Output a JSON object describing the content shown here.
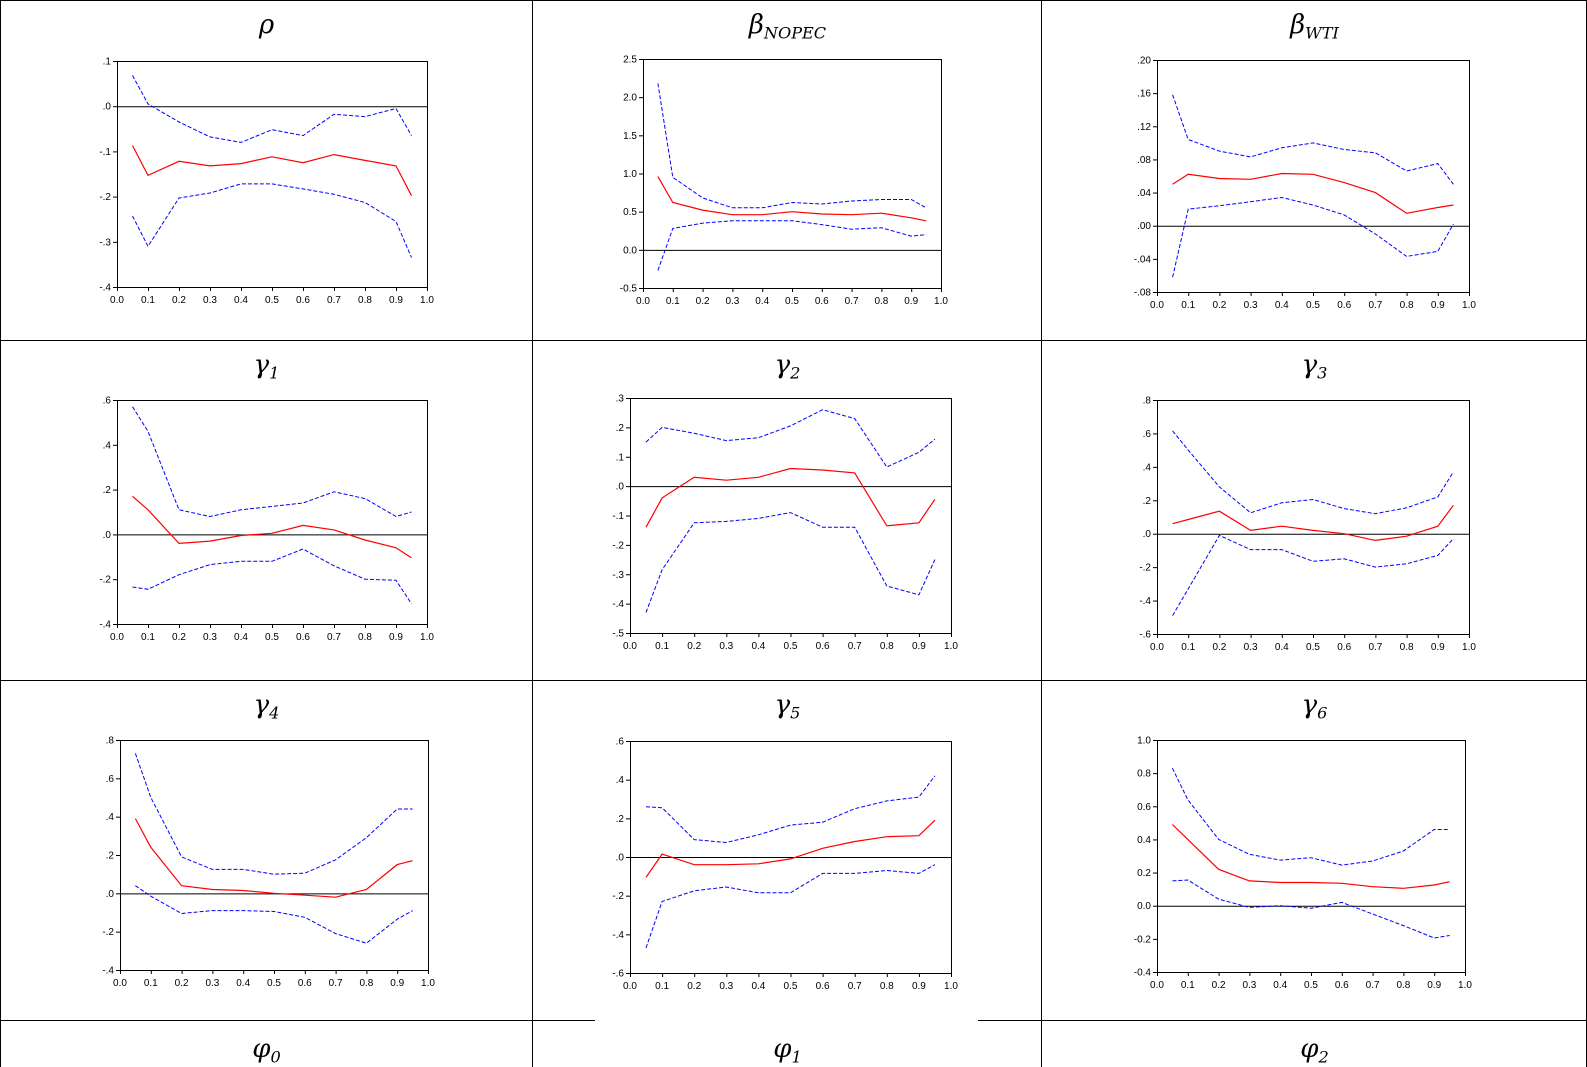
{
  "table": {
    "rows": [
      {
        "cells": [
          {
            "symbol": "ρ",
            "sub": ""
          },
          {
            "symbol": "β",
            "sub": "NOPEC"
          },
          {
            "symbol": "β",
            "sub": "WTI"
          }
        ]
      },
      {
        "cells": [
          {
            "symbol": "γ",
            "sub": "1"
          },
          {
            "symbol": "γ",
            "sub": "2"
          },
          {
            "symbol": "γ",
            "sub": "3"
          }
        ]
      },
      {
        "cells": [
          {
            "symbol": "γ",
            "sub": "4"
          },
          {
            "symbol": "γ",
            "sub": "5"
          },
          {
            "symbol": "γ",
            "sub": "6"
          }
        ]
      },
      {
        "cells": [
          {
            "symbol": "φ",
            "sub": "0"
          },
          {
            "symbol": "φ",
            "sub": "1"
          },
          {
            "symbol": "φ",
            "sub": "2"
          }
        ]
      }
    ]
  },
  "colors": {
    "estimate": "#ff0000",
    "confidence_band": "#0000ff",
    "zero_line": "#000000",
    "frame": "#000000"
  },
  "chart_data": [
    {
      "type": "line",
      "title": "ρ",
      "x": [
        0.05,
        0.1,
        0.2,
        0.3,
        0.4,
        0.5,
        0.6,
        0.7,
        0.8,
        0.9,
        0.95
      ],
      "xlim": [
        0.0,
        1.0
      ],
      "xticks": [
        "0.0",
        "0.1",
        "0.2",
        "0.3",
        "0.4",
        "0.5",
        "0.6",
        "0.7",
        "0.8",
        "0.9",
        "1.0"
      ],
      "ylim": [
        -0.4,
        0.1
      ],
      "yticks": [
        {
          "value": 0.1,
          "label": ".1"
        },
        {
          "value": 0.0,
          "label": ".0"
        },
        {
          "value": -0.1,
          "label": "-.1"
        },
        {
          "value": -0.2,
          "label": "-.2"
        },
        {
          "value": -0.3,
          "label": "-.3"
        },
        {
          "value": -0.4,
          "label": "-.4"
        }
      ],
      "series": [
        {
          "role": "upper",
          "style": "dashed",
          "values": [
            0.068,
            0.005,
            -0.035,
            -0.068,
            -0.08,
            -0.052,
            -0.065,
            -0.018,
            -0.023,
            -0.005,
            -0.065
          ]
        },
        {
          "role": "estimate",
          "style": "solid",
          "values": [
            -0.087,
            -0.153,
            -0.122,
            -0.132,
            -0.127,
            -0.112,
            -0.125,
            -0.107,
            -0.12,
            -0.132,
            -0.198
          ]
        },
        {
          "role": "lower",
          "style": "dashed",
          "values": [
            -0.243,
            -0.31,
            -0.203,
            -0.192,
            -0.172,
            -0.172,
            -0.183,
            -0.195,
            -0.213,
            -0.255,
            -0.335
          ]
        }
      ]
    },
    {
      "type": "line",
      "title": "β_NOPEC",
      "x": [
        0.05,
        0.1,
        0.2,
        0.3,
        0.4,
        0.5,
        0.6,
        0.7,
        0.8,
        0.9,
        0.95
      ],
      "xlim": [
        0.0,
        1.0
      ],
      "xticks": [
        "0.0",
        "0.1",
        "0.2",
        "0.3",
        "0.4",
        "0.5",
        "0.6",
        "0.7",
        "0.8",
        "0.9",
        "1.0"
      ],
      "ylim": [
        -0.5,
        2.5
      ],
      "yticks": [
        {
          "value": 2.5,
          "label": "2.5"
        },
        {
          "value": 2.0,
          "label": "2.0"
        },
        {
          "value": 1.5,
          "label": "1.5"
        },
        {
          "value": 1.0,
          "label": "1.0"
        },
        {
          "value": 0.5,
          "label": "0.5"
        },
        {
          "value": 0.0,
          "label": "0.0"
        },
        {
          "value": -0.5,
          "label": "-0.5"
        }
      ],
      "series": [
        {
          "role": "upper",
          "style": "dashed",
          "values": [
            2.18,
            0.95,
            0.68,
            0.55,
            0.55,
            0.62,
            0.6,
            0.64,
            0.66,
            0.66,
            0.55
          ]
        },
        {
          "role": "estimate",
          "style": "solid",
          "values": [
            0.96,
            0.62,
            0.52,
            0.46,
            0.46,
            0.5,
            0.47,
            0.46,
            0.48,
            0.42,
            0.38
          ]
        },
        {
          "role": "lower",
          "style": "dashed",
          "values": [
            -0.27,
            0.28,
            0.35,
            0.38,
            0.38,
            0.38,
            0.33,
            0.27,
            0.29,
            0.18,
            0.2
          ]
        }
      ]
    },
    {
      "type": "line",
      "title": "β_WTI",
      "x": [
        0.05,
        0.1,
        0.2,
        0.3,
        0.4,
        0.5,
        0.6,
        0.7,
        0.8,
        0.9,
        0.95
      ],
      "xlim": [
        0.0,
        1.0
      ],
      "xticks": [
        "0.0",
        "0.1",
        "0.2",
        "0.3",
        "0.4",
        "0.5",
        "0.6",
        "0.7",
        "0.8",
        "0.9",
        "1.0"
      ],
      "ylim": [
        -0.08,
        0.2
      ],
      "yticks": [
        {
          "value": 0.2,
          "label": ".20"
        },
        {
          "value": 0.16,
          "label": ".16"
        },
        {
          "value": 0.12,
          "label": ".12"
        },
        {
          "value": 0.08,
          "label": ".08"
        },
        {
          "value": 0.04,
          "label": ".04"
        },
        {
          "value": 0.0,
          "label": ".00"
        },
        {
          "value": -0.04,
          "label": "-.04"
        },
        {
          "value": -0.08,
          "label": "-.08"
        }
      ],
      "series": [
        {
          "role": "upper",
          "style": "dashed",
          "values": [
            0.158,
            0.104,
            0.09,
            0.083,
            0.094,
            0.1,
            0.092,
            0.088,
            0.066,
            0.075,
            0.05
          ]
        },
        {
          "role": "estimate",
          "style": "solid",
          "values": [
            0.05,
            0.062,
            0.057,
            0.056,
            0.063,
            0.062,
            0.052,
            0.04,
            0.015,
            0.022,
            0.025
          ]
        },
        {
          "role": "lower",
          "style": "dashed",
          "values": [
            -0.062,
            0.02,
            0.024,
            0.029,
            0.034,
            0.025,
            0.013,
            -0.01,
            -0.037,
            -0.031,
            0.002
          ]
        }
      ]
    },
    {
      "type": "line",
      "title": "γ_1",
      "x": [
        0.05,
        0.1,
        0.2,
        0.3,
        0.4,
        0.5,
        0.6,
        0.7,
        0.8,
        0.9,
        0.95
      ],
      "xlim": [
        0.0,
        1.0
      ],
      "xticks": [
        "0.0",
        "0.1",
        "0.2",
        "0.3",
        "0.4",
        "0.5",
        "0.6",
        "0.7",
        "0.8",
        "0.9",
        "1.0"
      ],
      "ylim": [
        -0.4,
        0.6
      ],
      "yticks": [
        {
          "value": 0.6,
          "label": ".6"
        },
        {
          "value": 0.4,
          "label": ".4"
        },
        {
          "value": 0.2,
          "label": ".2"
        },
        {
          "value": 0.0,
          "label": ".0"
        },
        {
          "value": -0.2,
          "label": "-.2"
        },
        {
          "value": -0.4,
          "label": "-.4"
        }
      ],
      "series": [
        {
          "role": "upper",
          "style": "dashed",
          "values": [
            0.57,
            0.46,
            0.11,
            0.08,
            0.11,
            0.125,
            0.14,
            0.19,
            0.16,
            0.08,
            0.1
          ]
        },
        {
          "role": "estimate",
          "style": "solid",
          "values": [
            0.17,
            0.11,
            -0.04,
            -0.03,
            -0.005,
            0.005,
            0.04,
            0.02,
            -0.025,
            -0.06,
            -0.105
          ]
        },
        {
          "role": "lower",
          "style": "dashed",
          "values": [
            -0.235,
            -0.245,
            -0.18,
            -0.135,
            -0.12,
            -0.12,
            -0.065,
            -0.14,
            -0.2,
            -0.205,
            -0.31
          ]
        }
      ]
    },
    {
      "type": "line",
      "title": "γ_2",
      "x": [
        0.05,
        0.1,
        0.2,
        0.3,
        0.4,
        0.5,
        0.6,
        0.7,
        0.8,
        0.9,
        0.95
      ],
      "xlim": [
        0.0,
        1.0
      ],
      "xticks": [
        "0.0",
        "0.1",
        "0.2",
        "0.3",
        "0.4",
        "0.5",
        "0.6",
        "0.7",
        "0.8",
        "0.9",
        "1.0"
      ],
      "ylim": [
        -0.5,
        0.3
      ],
      "yticks": [
        {
          "value": 0.3,
          "label": ".3"
        },
        {
          "value": 0.2,
          "label": ".2"
        },
        {
          "value": 0.1,
          "label": ".1"
        },
        {
          "value": 0.0,
          "label": ".0"
        },
        {
          "value": -0.1,
          "label": "-.1"
        },
        {
          "value": -0.2,
          "label": "-.2"
        },
        {
          "value": -0.3,
          "label": "-.3"
        },
        {
          "value": -0.4,
          "label": "-.4"
        },
        {
          "value": -0.5,
          "label": "-.5"
        }
      ],
      "series": [
        {
          "role": "upper",
          "style": "dashed",
          "values": [
            0.15,
            0.2,
            0.18,
            0.155,
            0.165,
            0.205,
            0.26,
            0.23,
            0.065,
            0.115,
            0.16
          ]
        },
        {
          "role": "estimate",
          "style": "solid",
          "values": [
            -0.14,
            -0.04,
            0.03,
            0.02,
            0.03,
            0.06,
            0.055,
            0.045,
            -0.135,
            -0.125,
            -0.045
          ]
        },
        {
          "role": "lower",
          "style": "dashed",
          "values": [
            -0.43,
            -0.285,
            -0.125,
            -0.12,
            -0.11,
            -0.09,
            -0.14,
            -0.14,
            -0.34,
            -0.37,
            -0.25
          ]
        }
      ]
    },
    {
      "type": "line",
      "title": "γ_3",
      "x": [
        0.05,
        0.1,
        0.2,
        0.3,
        0.4,
        0.5,
        0.6,
        0.7,
        0.8,
        0.9,
        0.95
      ],
      "xlim": [
        0.0,
        1.0
      ],
      "xticks": [
        "0.0",
        "0.1",
        "0.2",
        "0.3",
        "0.4",
        "0.5",
        "0.6",
        "0.7",
        "0.8",
        "0.9",
        "1.0"
      ],
      "ylim": [
        -0.6,
        0.8
      ],
      "yticks": [
        {
          "value": 0.8,
          "label": ".8"
        },
        {
          "value": 0.6,
          "label": ".6"
        },
        {
          "value": 0.4,
          "label": ".4"
        },
        {
          "value": 0.2,
          "label": ".2"
        },
        {
          "value": 0.0,
          "label": ".0"
        },
        {
          "value": -0.2,
          "label": "-.2"
        },
        {
          "value": -0.4,
          "label": "-.4"
        },
        {
          "value": -0.6,
          "label": "-.6"
        }
      ],
      "series": [
        {
          "role": "upper",
          "style": "dashed",
          "values": [
            0.615,
            0.5,
            0.28,
            0.125,
            0.185,
            0.205,
            0.15,
            0.12,
            0.155,
            0.22,
            0.37
          ]
        },
        {
          "role": "estimate",
          "style": "solid",
          "values": [
            0.06,
            0.085,
            0.135,
            0.02,
            0.045,
            0.02,
            0.0,
            -0.04,
            -0.015,
            0.045,
            0.17
          ]
        },
        {
          "role": "lower",
          "style": "dashed",
          "values": [
            -0.49,
            -0.33,
            -0.01,
            -0.095,
            -0.095,
            -0.165,
            -0.15,
            -0.2,
            -0.18,
            -0.13,
            -0.03
          ]
        }
      ]
    },
    {
      "type": "line",
      "title": "γ_4",
      "x": [
        0.05,
        0.1,
        0.2,
        0.3,
        0.4,
        0.5,
        0.6,
        0.7,
        0.8,
        0.9,
        0.95
      ],
      "xlim": [
        0.0,
        1.0
      ],
      "xticks": [
        "0.0",
        "0.1",
        "0.2",
        "0.3",
        "0.4",
        "0.5",
        "0.6",
        "0.7",
        "0.8",
        "0.9",
        "1.0"
      ],
      "ylim": [
        -0.4,
        0.8
      ],
      "yticks": [
        {
          "value": 0.8,
          "label": ".8"
        },
        {
          "value": 0.6,
          "label": ".6"
        },
        {
          "value": 0.4,
          "label": ".4"
        },
        {
          "value": 0.2,
          "label": ".2"
        },
        {
          "value": 0.0,
          "label": ".0"
        },
        {
          "value": -0.2,
          "label": "-.2"
        },
        {
          "value": -0.4,
          "label": "-.4"
        }
      ],
      "series": [
        {
          "role": "upper",
          "style": "dashed",
          "values": [
            0.73,
            0.5,
            0.19,
            0.125,
            0.125,
            0.1,
            0.105,
            0.175,
            0.29,
            0.44,
            0.44
          ]
        },
        {
          "role": "estimate",
          "style": "solid",
          "values": [
            0.39,
            0.24,
            0.04,
            0.02,
            0.015,
            0.0,
            -0.01,
            -0.02,
            0.02,
            0.15,
            0.17
          ]
        },
        {
          "role": "lower",
          "style": "dashed",
          "values": [
            0.04,
            -0.015,
            -0.105,
            -0.09,
            -0.09,
            -0.095,
            -0.125,
            -0.21,
            -0.26,
            -0.135,
            -0.09
          ]
        }
      ]
    },
    {
      "type": "line",
      "title": "γ_5",
      "x": [
        0.05,
        0.1,
        0.2,
        0.3,
        0.4,
        0.5,
        0.6,
        0.7,
        0.8,
        0.9,
        0.95
      ],
      "xlim": [
        0.0,
        1.0
      ],
      "xticks": [
        "0.0",
        "0.1",
        "0.2",
        "0.3",
        "0.4",
        "0.5",
        "0.6",
        "0.7",
        "0.8",
        "0.9",
        "1.0"
      ],
      "ylim": [
        -0.6,
        0.6
      ],
      "yticks": [
        {
          "value": 0.6,
          "label": ".6"
        },
        {
          "value": 0.4,
          "label": ".4"
        },
        {
          "value": 0.2,
          "label": ".2"
        },
        {
          "value": 0.0,
          "label": ".0"
        },
        {
          "value": -0.2,
          "label": "-.2"
        },
        {
          "value": -0.4,
          "label": "-.4"
        },
        {
          "value": -0.6,
          "label": "-.6"
        }
      ],
      "series": [
        {
          "role": "upper",
          "style": "dashed",
          "values": [
            0.26,
            0.255,
            0.09,
            0.075,
            0.115,
            0.165,
            0.18,
            0.25,
            0.29,
            0.31,
            0.42
          ]
        },
        {
          "role": "estimate",
          "style": "solid",
          "values": [
            -0.105,
            0.015,
            -0.04,
            -0.04,
            -0.035,
            -0.01,
            0.045,
            0.08,
            0.105,
            0.11,
            0.19
          ]
        },
        {
          "role": "lower",
          "style": "dashed",
          "values": [
            -0.47,
            -0.23,
            -0.175,
            -0.155,
            -0.185,
            -0.185,
            -0.085,
            -0.085,
            -0.07,
            -0.085,
            -0.04
          ]
        }
      ]
    },
    {
      "type": "line",
      "title": "γ_6",
      "x": [
        0.05,
        0.1,
        0.2,
        0.3,
        0.4,
        0.5,
        0.6,
        0.7,
        0.8,
        0.9,
        0.95
      ],
      "xlim": [
        0.0,
        1.0
      ],
      "xticks": [
        "0.0",
        "0.1",
        "0.2",
        "0.3",
        "0.4",
        "0.5",
        "0.6",
        "0.7",
        "0.8",
        "0.9",
        "1.0"
      ],
      "ylim": [
        -0.4,
        1.0
      ],
      "yticks": [
        {
          "value": 1.0,
          "label": "1.0"
        },
        {
          "value": 0.8,
          "label": "0.8"
        },
        {
          "value": 0.6,
          "label": "0.6"
        },
        {
          "value": 0.4,
          "label": "0.4"
        },
        {
          "value": 0.2,
          "label": "0.2"
        },
        {
          "value": 0.0,
          "label": "0.0"
        },
        {
          "value": -0.2,
          "label": "-0.2"
        },
        {
          "value": -0.4,
          "label": "-0.4"
        }
      ],
      "series": [
        {
          "role": "upper",
          "style": "dashed",
          "values": [
            0.83,
            0.64,
            0.4,
            0.31,
            0.275,
            0.29,
            0.245,
            0.27,
            0.33,
            0.46,
            0.46
          ]
        },
        {
          "role": "estimate",
          "style": "solid",
          "values": [
            0.49,
            0.4,
            0.22,
            0.15,
            0.14,
            0.14,
            0.135,
            0.115,
            0.105,
            0.125,
            0.145
          ]
        },
        {
          "role": "lower",
          "style": "dashed",
          "values": [
            0.15,
            0.155,
            0.04,
            -0.01,
            0.0,
            -0.015,
            0.02,
            -0.05,
            -0.12,
            -0.195,
            -0.18
          ]
        }
      ]
    }
  ]
}
